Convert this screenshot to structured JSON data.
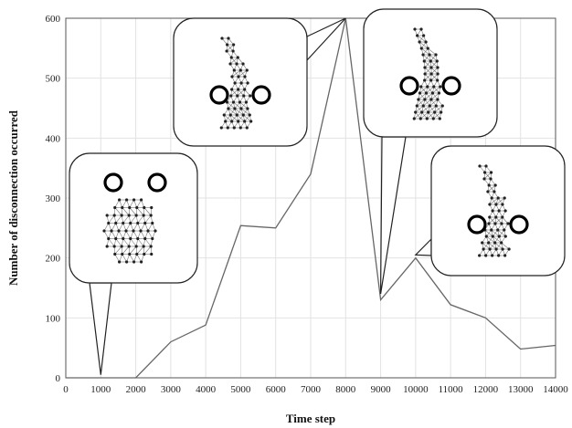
{
  "chart_data": {
    "type": "line",
    "title": "",
    "xlabel": "Time step",
    "ylabel": "Number of  disconnection occurred",
    "xlim": [
      0,
      14000
    ],
    "ylim": [
      0,
      600
    ],
    "x_ticks": [
      "0",
      "1000",
      "2000",
      "3000",
      "4000",
      "5000",
      "6000",
      "7000",
      "8000",
      "9000",
      "10000",
      "11000",
      "12000",
      "13000",
      "14000"
    ],
    "y_ticks": [
      "0",
      "100",
      "200",
      "300",
      "400",
      "500",
      "600"
    ],
    "grid": true,
    "series": [
      {
        "x": [
          0,
          1000,
          2000,
          3000,
          4000,
          5000,
          6000,
          7000,
          8000,
          9000,
          10000,
          11000,
          12000,
          13000,
          14000
        ],
        "y": [
          0,
          0,
          0,
          60,
          88,
          254,
          250,
          340,
          600,
          130,
          200,
          122,
          100,
          48,
          54
        ]
      }
    ],
    "insets": [
      {
        "shape": "oval",
        "tip": [
          1000,
          5
        ],
        "obstacles_side": "top"
      },
      {
        "shape": "bent",
        "tip": [
          8000,
          600
        ],
        "obstacles_side": "bottom"
      },
      {
        "shape": "bent",
        "tip": [
          9000,
          140
        ],
        "obstacles_side": "bottom"
      },
      {
        "shape": "bent",
        "tip": [
          10000,
          205
        ],
        "obstacles_side": "bottom"
      }
    ],
    "colors": {
      "line": "#666666",
      "grid": "#e2e2e2",
      "callout_stroke": "#222222",
      "obstacle": "#000000"
    }
  }
}
